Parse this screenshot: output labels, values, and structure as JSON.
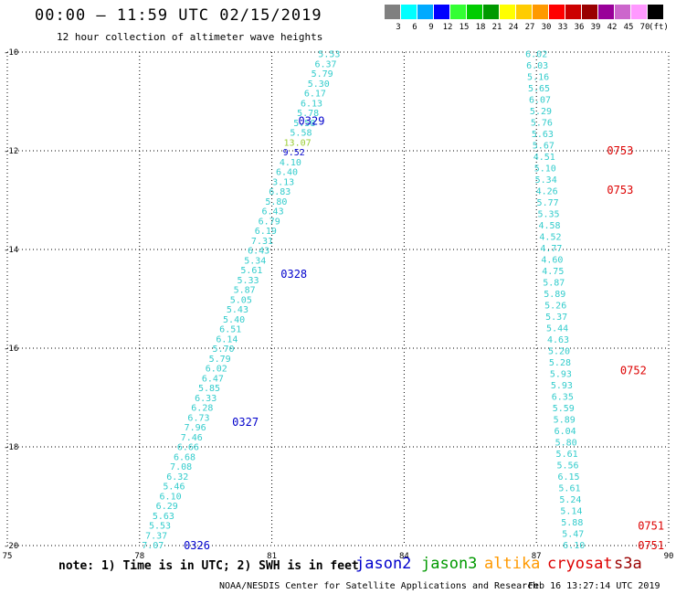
{
  "header": {
    "title": "00:00 – 11:59 UTC 02/15/2019",
    "subtitle": "12 hour collection of altimeter wave heights"
  },
  "color_scale": {
    "bins": [
      {
        "label": "3",
        "color": "#808080"
      },
      {
        "label": "6",
        "color": "#00ffff"
      },
      {
        "label": "9",
        "color": "#00aaff"
      },
      {
        "label": "12",
        "color": "#0000ff"
      },
      {
        "label": "15",
        "color": "#33ff33"
      },
      {
        "label": "18",
        "color": "#00cc00"
      },
      {
        "label": "21",
        "color": "#009900"
      },
      {
        "label": "24",
        "color": "#ffff00"
      },
      {
        "label": "27",
        "color": "#ffcc00"
      },
      {
        "label": "30",
        "color": "#ff9900"
      },
      {
        "label": "33",
        "color": "#ff0000"
      },
      {
        "label": "36",
        "color": "#cc0000"
      },
      {
        "label": "39",
        "color": "#990000"
      },
      {
        "label": "42",
        "color": "#990099"
      },
      {
        "label": "45",
        "color": "#cc66cc"
      },
      {
        "label": "70",
        "color": "#ff99ff"
      },
      {
        "label": "",
        "color": "#000000"
      }
    ],
    "unit": "(ft)"
  },
  "map": {
    "lon_labels": [
      "75",
      "78",
      "81",
      "84",
      "87",
      "90"
    ],
    "lat_labels": [
      "-10",
      "-12",
      "-14",
      "-16",
      "-18",
      "-20"
    ],
    "lon_range": [
      75,
      90
    ],
    "lat_range": [
      -10,
      -20
    ],
    "track_text_color": "#33cccc",
    "passes": [
      {
        "label": "0329",
        "color": "#0000cc",
        "lon": 81.6,
        "lat": -11.4
      },
      {
        "label": "0328",
        "color": "#0000cc",
        "lon": 81.2,
        "lat": -14.5
      },
      {
        "label": "0327",
        "color": "#0000cc",
        "lon": 80.1,
        "lat": -17.5
      },
      {
        "label": "0326",
        "color": "#0000cc",
        "lon": 79.0,
        "lat": -20.0
      },
      {
        "label": "0753",
        "color": "#dd0000",
        "lon": 88.6,
        "lat": -12.0
      },
      {
        "label": "0753",
        "color": "#dd0000",
        "lon": 88.6,
        "lat": -12.8
      },
      {
        "label": "0752",
        "color": "#dd0000",
        "lon": 88.9,
        "lat": -16.45
      },
      {
        "label": "0751",
        "color": "#dd0000",
        "lon": 89.3,
        "lat": -19.6
      },
      {
        "label": "0751",
        "color": "#dd0000",
        "lon": 89.3,
        "lat": -20.0
      }
    ],
    "tracks": [
      {
        "name": "west",
        "lon_start": 82.3,
        "lat_start": -10.05,
        "lon_end": 78.3,
        "lat_end": -20.0,
        "values": [
          "5.53",
          "6.37",
          "5.79",
          "5.30",
          "6.17",
          "6.13",
          "5.78",
          "5.58",
          "5.58",
          "13.07",
          "9.52",
          "4.10",
          "6.40",
          "3.13",
          "6.83",
          "5.80",
          "6.43",
          "6.79",
          "6.19",
          "7.31",
          "6.43",
          "5.34",
          "5.61",
          "5.33",
          "5.87",
          "5.05",
          "5.43",
          "5.40",
          "6.51",
          "6.14",
          "5.70",
          "5.79",
          "6.02",
          "6.47",
          "5.85",
          "6.33",
          "6.28",
          "6.73",
          "7.96",
          "7.46",
          "6.66",
          "6.68",
          "7.08",
          "6.32",
          "5.46",
          "6.10",
          "6.29",
          "5.63",
          "5.53",
          "7.37",
          "7.07"
        ],
        "value_colors": {
          "9": "#99cc33",
          "10": "#0000cc"
        }
      },
      {
        "name": "east",
        "lon_start": 87.0,
        "lat_start": -10.05,
        "lon_end": 87.85,
        "lat_end": -20.0,
        "values": [
          "6.02",
          "6.03",
          "5.16",
          "5.65",
          "6.07",
          "5.29",
          "5.76",
          "5.63",
          "5.67",
          "4.51",
          "5.10",
          "5.34",
          "4.26",
          "5.77",
          "5.35",
          "4.58",
          "4.52",
          "4.77",
          "4.60",
          "4.75",
          "5.87",
          "5.89",
          "5.26",
          "5.37",
          "5.44",
          "4.63",
          "5.20",
          "5.28",
          "5.93",
          "5.93",
          "6.35",
          "5.59",
          "5.89",
          "6.04",
          "5.80",
          "5.61",
          "5.56",
          "6.15",
          "5.61",
          "5.24",
          "5.14",
          "5.88",
          "5.47",
          "6.10"
        ],
        "value_colors": {}
      }
    ]
  },
  "footer": {
    "note": "note: 1) Time is in UTC; 2) SWH is in feet",
    "legend": [
      {
        "label": "jason2",
        "color": "#0000cc"
      },
      {
        "label": "jason3",
        "color": "#009900"
      },
      {
        "label": "altika",
        "color": "#ff9900"
      },
      {
        "label": "cryosat",
        "color": "#dd0000"
      },
      {
        "label": "s3a",
        "color": "#990000"
      }
    ],
    "credit": "NOAA/NESDIS Center for Satellite Applications and Research",
    "timestamp": "Feb 16 13:27:14 UTC 2019"
  }
}
